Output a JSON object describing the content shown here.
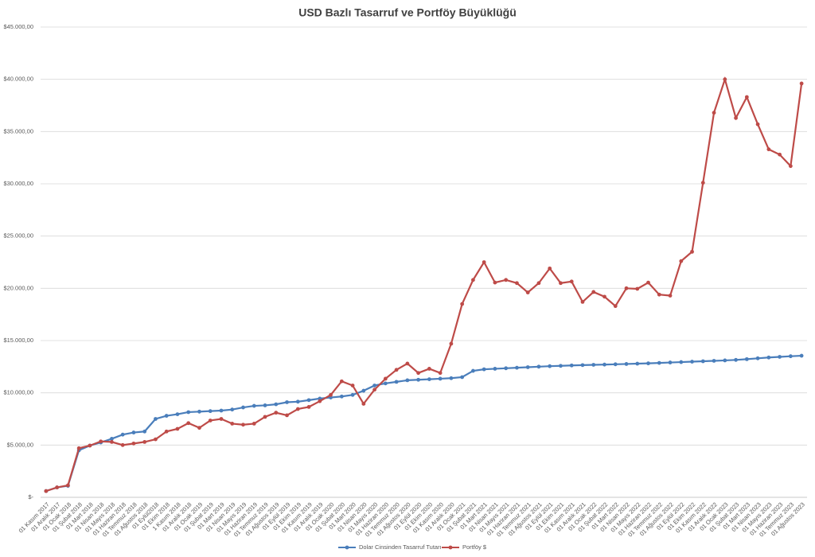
{
  "chart_data": {
    "type": "line",
    "title": "USD Bazlı Tasarruf ve Portföy Büyüklüğü",
    "categories": [
      "01 Kasım 2017",
      "01 Aralık 2017",
      "01 Ocak 2018",
      "01 Şubat 2018",
      "01 Mart 2018",
      "01 Nisan 2018",
      "01 Mayıs 2018",
      "01 Haziran 2018",
      "01 Temmuz 2018",
      "01 Ağustos 2018",
      "01 Eylül2018",
      "01 Ekim 2018",
      "1 Kasım 2018",
      "01 Aralık 2018",
      "01 Ocak 2019",
      "01 Şubat 2019",
      "01 Mart 2019",
      "01 Nisan 2019",
      "01 Mayıs 2019",
      "01 Haziran 2019",
      "01 Temmuz 2019",
      "01 Ağustos 2019",
      "01 Eylül 2019",
      "01 Ekim 2019",
      "01 Kasım 2019",
      "01 Aralık 2019",
      "01 Ocak 2020",
      "01 Şubat 2020",
      "01 Mart 2020",
      "01 Nisan 2020",
      "01 Mayıs 2020",
      "01 Haziran 2020",
      "01 Temmuz 2020",
      "01 Ağustos 2020",
      "01 Eylül 2020",
      "01 Ekim 2020",
      "01 Kasım 2020",
      "01 Aralık 2020",
      "01 Ocak 2021",
      "01 Şubat 2021",
      "01 Mart 2021",
      "01 Nisan 2021",
      "01 Mayıs 2021",
      "01 Haziran 2021",
      "01 Temmuz 2021",
      "01 Ağustos 2021",
      "01 Eylül 2021",
      "01 Ekim 2021",
      "01 Kasım 2021",
      "01 Aralık 2021",
      "01 Ocak 2022",
      "01 Şubat 2022",
      "01 Mart 2022",
      "01 Nisan 2022",
      "01 Mayıs 2022",
      "01 Haziran 2022",
      "01 Temmuz 2022",
      "01 Ağustos 2022",
      "01 Eylül 2022",
      "01 Ekim 2022",
      "01 Kasım 2022",
      "01 Aralık 2022",
      "01 Ocak 2023",
      "01 Şubat 2023",
      "01 Mart 2023",
      "01 Nisan 2023",
      "01 Mayıs 2023",
      "01 Haziran 2023",
      "01 Temmuz 2023",
      "01 Ağustos 2023"
    ],
    "series": [
      {
        "name": "Dolar Cinsinden Tasarruf Tutarı",
        "color": "#4a7ebb",
        "values": [
          600,
          950,
          1100,
          4500,
          4950,
          5250,
          5600,
          6000,
          6200,
          6300,
          7500,
          7800,
          7950,
          8150,
          8200,
          8250,
          8300,
          8400,
          8600,
          8750,
          8800,
          8900,
          9100,
          9150,
          9300,
          9450,
          9550,
          9650,
          9800,
          10200,
          10700,
          10900,
          11050,
          11200,
          11250,
          11300,
          11350,
          11400,
          11500,
          12100,
          12250,
          12300,
          12350,
          12400,
          12450,
          12500,
          12550,
          12580,
          12620,
          12650,
          12680,
          12700,
          12730,
          12760,
          12790,
          12820,
          12860,
          12900,
          12940,
          12980,
          13020,
          13060,
          13100,
          13150,
          13220,
          13300,
          13380,
          13440,
          13500,
          13550
        ]
      },
      {
        "name": "Portföy $",
        "color": "#be4b48",
        "values": [
          600,
          950,
          1150,
          4700,
          4950,
          5350,
          5300,
          5000,
          5150,
          5300,
          5550,
          6300,
          6550,
          7100,
          6650,
          7350,
          7500,
          7050,
          6950,
          7050,
          7700,
          8100,
          7850,
          8450,
          8650,
          9200,
          9800,
          11100,
          10700,
          8950,
          10300,
          11350,
          12200,
          12800,
          11900,
          12300,
          11900,
          14700,
          18500,
          20800,
          22500,
          20550,
          20800,
          20500,
          19600,
          20500,
          21900,
          20500,
          20650,
          18700,
          19650,
          19200,
          18300,
          20000,
          19950,
          20550,
          19400,
          19300,
          22600,
          23500,
          30100,
          36800,
          40000,
          36300,
          38300,
          35700,
          33300,
          32800,
          31700,
          39600
        ]
      }
    ],
    "ylim": [
      0,
      45000
    ],
    "yticks": [
      {
        "value": 0,
        "label": "$-"
      },
      {
        "value": 5000,
        "label": "$5.000,00"
      },
      {
        "value": 10000,
        "label": "$10.000,00"
      },
      {
        "value": 15000,
        "label": "$15.000,00"
      },
      {
        "value": 20000,
        "label": "$20.000,00"
      },
      {
        "value": 25000,
        "label": "$25.000,00"
      },
      {
        "value": 30000,
        "label": "$30.000,00"
      },
      {
        "value": 35000,
        "label": "$35.000,00"
      },
      {
        "value": 40000,
        "label": "$40.000,00"
      },
      {
        "value": 45000,
        "label": "$45.000,00"
      }
    ],
    "grid": true,
    "legend": "bottom"
  }
}
